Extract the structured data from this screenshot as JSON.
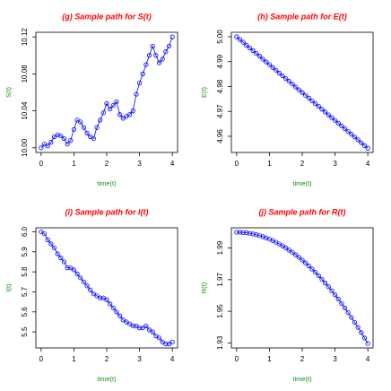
{
  "chart_data": [
    {
      "type": "line",
      "title": "(g) Sample path for S(t)",
      "xlabel": "time(t)",
      "ylabel": "S(t)",
      "color": "#0000ff",
      "x": [
        0,
        0.1,
        0.2,
        0.3,
        0.4,
        0.5,
        0.6,
        0.7,
        0.8,
        0.9,
        1,
        1.1,
        1.2,
        1.3,
        1.4,
        1.5,
        1.6,
        1.7,
        1.8,
        1.9,
        2,
        2.1,
        2.2,
        2.3,
        2.4,
        2.5,
        2.6,
        2.7,
        2.8,
        2.9,
        3,
        3.1,
        3.2,
        3.3,
        3.4,
        3.5,
        3.6,
        3.7,
        3.8,
        3.9,
        4
      ],
      "values": [
        10.0,
        10.004,
        10.002,
        10.006,
        10.012,
        10.014,
        10.013,
        10.01,
        10.004,
        10.008,
        10.02,
        10.03,
        10.028,
        10.022,
        10.016,
        10.012,
        10.01,
        10.022,
        10.03,
        10.038,
        10.048,
        10.042,
        10.046,
        10.05,
        10.036,
        10.032,
        10.034,
        10.036,
        10.04,
        10.058,
        10.07,
        10.08,
        10.09,
        10.1,
        10.11,
        10.1,
        10.092,
        10.096,
        10.104,
        10.11,
        10.12
      ],
      "xlim": [
        -0.16,
        4.16
      ],
      "ylim": [
        9.995,
        10.125
      ],
      "xticks": [
        0,
        1,
        2,
        3,
        4
      ],
      "yticks": [
        {
          "value": 10.0,
          "label": "10.00"
        },
        10.04,
        10.08,
        10.12
      ]
    },
    {
      "type": "line",
      "title": "(h) Sample path for E(t)",
      "xlabel": "time(t)",
      "ylabel": "E(t)",
      "color": "#0000ff",
      "x": [
        0,
        0.1,
        0.2,
        0.3,
        0.4,
        0.5,
        0.6,
        0.7,
        0.8,
        0.9,
        1,
        1.1,
        1.2,
        1.3,
        1.4,
        1.5,
        1.6,
        1.7,
        1.8,
        1.9,
        2,
        2.1,
        2.2,
        2.3,
        2.4,
        2.5,
        2.6,
        2.7,
        2.8,
        2.9,
        3,
        3.1,
        3.2,
        3.3,
        3.4,
        3.5,
        3.6,
        3.7,
        3.8,
        3.9,
        4
      ],
      "values": [
        5.0,
        4.9989,
        4.9978,
        4.9966,
        4.9955,
        4.9944,
        4.9933,
        4.9922,
        4.991,
        4.9899,
        4.9888,
        4.9877,
        4.9866,
        4.9854,
        4.9843,
        4.9832,
        4.9821,
        4.981,
        4.9798,
        4.9787,
        4.9776,
        4.9765,
        4.9754,
        4.9742,
        4.9731,
        4.972,
        4.9709,
        4.9698,
        4.9686,
        4.9675,
        4.9664,
        4.9653,
        4.9642,
        4.963,
        4.9619,
        4.9608,
        4.9597,
        4.9586,
        4.9574,
        4.9563,
        4.9552
      ],
      "xlim": [
        -0.16,
        4.16
      ],
      "ylim": [
        4.9535,
        5.0018
      ],
      "xticks": [
        0,
        1,
        2,
        3,
        4
      ],
      "yticks": [
        4.96,
        4.97,
        4.98,
        4.99,
        {
          "value": 5.0,
          "label": "5.00"
        }
      ]
    },
    {
      "type": "line",
      "title": "(i) Sample path for I(t)",
      "xlabel": "time(t)",
      "ylabel": "I(t)",
      "color": "#0000ff",
      "x": [
        0,
        0.1,
        0.2,
        0.3,
        0.4,
        0.5,
        0.6,
        0.7,
        0.8,
        0.9,
        1,
        1.1,
        1.2,
        1.3,
        1.4,
        1.5,
        1.6,
        1.7,
        1.8,
        1.9,
        2,
        2.1,
        2.2,
        2.3,
        2.4,
        2.5,
        2.6,
        2.7,
        2.8,
        2.9,
        3,
        3.1,
        3.2,
        3.3,
        3.4,
        3.5,
        3.6,
        3.7,
        3.8,
        3.9,
        4
      ],
      "values": [
        6.0,
        5.99,
        5.96,
        5.94,
        5.92,
        5.89,
        5.87,
        5.85,
        5.82,
        5.82,
        5.81,
        5.79,
        5.77,
        5.75,
        5.73,
        5.71,
        5.69,
        5.68,
        5.67,
        5.67,
        5.66,
        5.64,
        5.62,
        5.6,
        5.58,
        5.56,
        5.55,
        5.54,
        5.53,
        5.53,
        5.52,
        5.52,
        5.53,
        5.51,
        5.5,
        5.48,
        5.47,
        5.45,
        5.44,
        5.44,
        5.45
      ],
      "xlim": [
        -0.16,
        4.16
      ],
      "ylim": [
        5.42,
        6.02
      ],
      "xticks": [
        0,
        1,
        2,
        3,
        4
      ],
      "yticks": [
        5.5,
        5.6,
        5.7,
        5.8,
        5.9,
        {
          "value": 6.0,
          "label": "6.0"
        }
      ]
    },
    {
      "type": "line",
      "title": "(j) Sample path for R(t)",
      "xlabel": "time(t)",
      "ylabel": "R(t)",
      "color": "#0000ff",
      "x": [
        0,
        0.1,
        0.2,
        0.3,
        0.4,
        0.5,
        0.6,
        0.7,
        0.8,
        0.9,
        1,
        1.1,
        1.2,
        1.3,
        1.4,
        1.5,
        1.6,
        1.7,
        1.8,
        1.9,
        2,
        2.1,
        2.2,
        2.3,
        2.4,
        2.5,
        2.6,
        2.7,
        2.8,
        2.9,
        3,
        3.1,
        3.2,
        3.3,
        3.4,
        3.5,
        3.6,
        3.7,
        3.8,
        3.9,
        4
      ],
      "values": [
        2.0,
        2.0,
        1.9998,
        1.9996,
        1.9993,
        1.9989,
        1.9984,
        1.9978,
        1.9972,
        1.9964,
        1.9956,
        1.9947,
        1.9937,
        1.9926,
        1.9914,
        1.9901,
        1.9887,
        1.9873,
        1.9857,
        1.9841,
        1.9824,
        1.9806,
        1.9787,
        1.9767,
        1.9747,
        1.9725,
        1.9703,
        1.9679,
        1.9655,
        1.963,
        1.9604,
        1.9577,
        1.9549,
        1.9521,
        1.9491,
        1.9461,
        1.943,
        1.9398,
        1.9365,
        1.9331,
        1.9296
      ],
      "xlim": [
        -0.16,
        4.16
      ],
      "ylim": [
        1.9268,
        2.0028
      ],
      "xticks": [
        0,
        1,
        2,
        3,
        4
      ],
      "yticks": [
        1.93,
        1.95,
        1.97,
        1.99
      ]
    }
  ]
}
